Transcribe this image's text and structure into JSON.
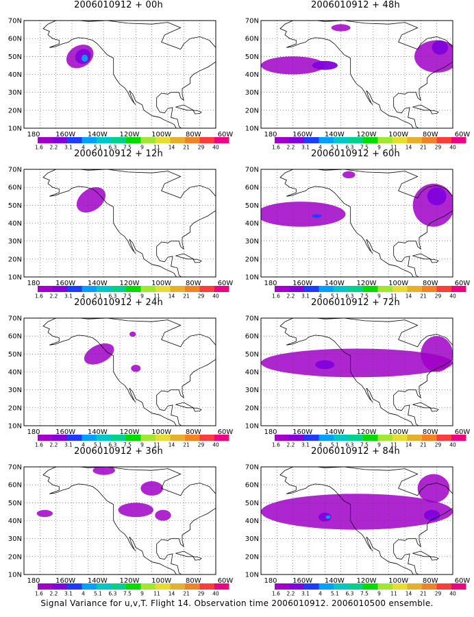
{
  "caption": "Signal Variance for u,v,T. Flight 14. Observation time 2006010912. 2006010500 ensemble.",
  "lat_labels": [
    "10N",
    "20N",
    "30N",
    "40N",
    "50N",
    "60N",
    "70N"
  ],
  "lon_labels": [
    "180",
    "160W",
    "140W",
    "120W",
    "100W",
    "80W",
    "60W"
  ],
  "colorbar": {
    "labels": [
      "1.6",
      "2.2",
      "3.1",
      "4",
      "5.1",
      "6.3",
      "7.5",
      "9",
      "11",
      "14",
      "21",
      "29",
      "40"
    ],
    "colors": [
      "#a000c8",
      "#8200dc",
      "#1e3cff",
      "#00a0ff",
      "#00c8c8",
      "#00d28c",
      "#00dc00",
      "#a0e632",
      "#e6dc32",
      "#e6af2d",
      "#f08228",
      "#fa3c3c",
      "#f00082"
    ]
  },
  "map_extent": {
    "lon_min": -180,
    "lon_max": -60,
    "lat_min": 10,
    "lat_max": 70
  },
  "panels": [
    {
      "title": "2006010912 + 00h",
      "col": 0,
      "row": 0,
      "blobs": [
        {
          "lon": -145,
          "lat": 50,
          "rx": 9,
          "ry": 6,
          "level": 0,
          "rot": -30
        },
        {
          "lon": -143,
          "lat": 50,
          "rx": 5,
          "ry": 4,
          "level": 1,
          "rot": -30
        },
        {
          "lon": -142,
          "lat": 49,
          "rx": 2,
          "ry": 2,
          "level": 3,
          "rot": 0
        }
      ]
    },
    {
      "title": "2006010912 + 48h",
      "col": 1,
      "row": 0,
      "blobs": [
        {
          "lon": -160,
          "lat": 45,
          "rx": 20,
          "ry": 5,
          "level": 0,
          "rot": 0
        },
        {
          "lon": -140,
          "lat": 45,
          "rx": 8,
          "ry": 2.5,
          "level": 1,
          "rot": 0
        },
        {
          "lon": -70,
          "lat": 50,
          "rx": 14,
          "ry": 9,
          "level": 0,
          "rot": 0
        },
        {
          "lon": -68,
          "lat": 55,
          "rx": 5,
          "ry": 4,
          "level": 1,
          "rot": 0
        },
        {
          "lon": -130,
          "lat": 66,
          "rx": 6,
          "ry": 2,
          "level": 0,
          "rot": 0
        }
      ]
    },
    {
      "title": "2006010912 + 12h",
      "col": 0,
      "row": 1,
      "blobs": [
        {
          "lon": -138,
          "lat": 53,
          "rx": 10,
          "ry": 6,
          "level": 0,
          "rot": -35
        }
      ]
    },
    {
      "title": "2006010912 + 60h",
      "col": 1,
      "row": 1,
      "blobs": [
        {
          "lon": -155,
          "lat": 45,
          "rx": 28,
          "ry": 7,
          "level": 0,
          "rot": 0
        },
        {
          "lon": -145,
          "lat": 44,
          "rx": 3,
          "ry": 1,
          "level": 2,
          "rot": 0
        },
        {
          "lon": -72,
          "lat": 50,
          "rx": 13,
          "ry": 12,
          "level": 0,
          "rot": 0
        },
        {
          "lon": -70,
          "lat": 55,
          "rx": 6,
          "ry": 5,
          "level": 1,
          "rot": 0
        },
        {
          "lon": -125,
          "lat": 67,
          "rx": 4,
          "ry": 2,
          "level": 0,
          "rot": 0
        }
      ]
    },
    {
      "title": "2006010912 + 24h",
      "col": 0,
      "row": 2,
      "blobs": [
        {
          "lon": -133,
          "lat": 50,
          "rx": 10,
          "ry": 5,
          "level": 0,
          "rot": -25
        },
        {
          "lon": -110,
          "lat": 42,
          "rx": 3,
          "ry": 2,
          "level": 0,
          "rot": 0
        },
        {
          "lon": -112,
          "lat": 61,
          "rx": 2,
          "ry": 1.5,
          "level": 0,
          "rot": 0
        }
      ]
    },
    {
      "title": "2006010912 + 72h",
      "col": 1,
      "row": 2,
      "blobs": [
        {
          "lon": -120,
          "lat": 45,
          "rx": 60,
          "ry": 8,
          "level": 0,
          "rot": 0
        },
        {
          "lon": -140,
          "lat": 44,
          "rx": 6,
          "ry": 2.5,
          "level": 1,
          "rot": 0
        },
        {
          "lon": -70,
          "lat": 50,
          "rx": 10,
          "ry": 10,
          "level": 0,
          "rot": 0
        }
      ]
    },
    {
      "title": "2006010912 + 36h",
      "col": 0,
      "row": 3,
      "blobs": [
        {
          "lon": -130,
          "lat": 68,
          "rx": 7,
          "ry": 2.5,
          "level": 0,
          "rot": 0
        },
        {
          "lon": -100,
          "lat": 58,
          "rx": 7,
          "ry": 4,
          "level": 0,
          "rot": 0
        },
        {
          "lon": -110,
          "lat": 46,
          "rx": 11,
          "ry": 4,
          "level": 0,
          "rot": 0
        },
        {
          "lon": -93,
          "lat": 43,
          "rx": 5,
          "ry": 3,
          "level": 0,
          "rot": 0
        },
        {
          "lon": -167,
          "lat": 44,
          "rx": 5,
          "ry": 2,
          "level": 0,
          "rot": 0
        }
      ]
    },
    {
      "title": "2006010912 + 84h",
      "col": 1,
      "row": 3,
      "blobs": [
        {
          "lon": -120,
          "lat": 45,
          "rx": 60,
          "ry": 10,
          "level": 0,
          "rot": 0
        },
        {
          "lon": -140,
          "lat": 42,
          "rx": 4,
          "ry": 2.5,
          "level": 1,
          "rot": 0
        },
        {
          "lon": -138,
          "lat": 42,
          "rx": 1.5,
          "ry": 1,
          "level": 3,
          "rot": 0
        },
        {
          "lon": -73,
          "lat": 43,
          "rx": 5,
          "ry": 3,
          "level": 1,
          "rot": 0
        },
        {
          "lon": -72,
          "lat": 58,
          "rx": 10,
          "ry": 8,
          "level": 0,
          "rot": 0
        }
      ]
    }
  ]
}
